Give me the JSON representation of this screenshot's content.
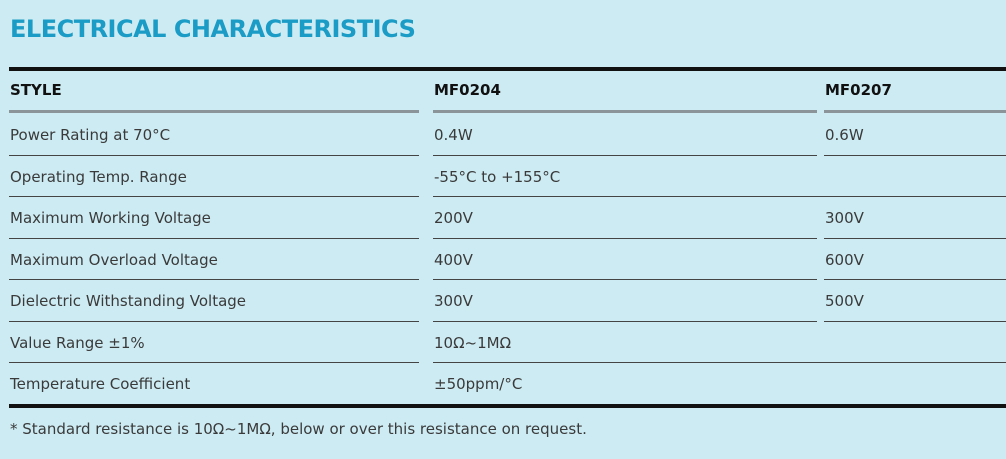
{
  "title": "ELECTRICAL CHARACTERISTICS",
  "table": {
    "header": [
      "STYLE",
      "MF0204",
      "MF0207"
    ],
    "rows": [
      [
        "Power Rating at 70°C",
        "0.4W",
        "0.6W"
      ],
      [
        "Operating Temp. Range",
        "-55°C to +155°C"
      ],
      [
        "Maximum Working Voltage",
        "200V",
        "300V"
      ],
      [
        "Maximum Overload Voltage",
        "400V",
        "600V"
      ],
      [
        "Dielectric Withstanding Voltage",
        "300V",
        "500V"
      ],
      [
        "Value Range ±1%",
        "10Ω~1MΩ"
      ],
      [
        "Temperature Coefficient",
        "±50ppm/°C"
      ]
    ]
  },
  "footnote": "* Standard resistance is 10Ω~1MΩ, below or over this resistance on request."
}
